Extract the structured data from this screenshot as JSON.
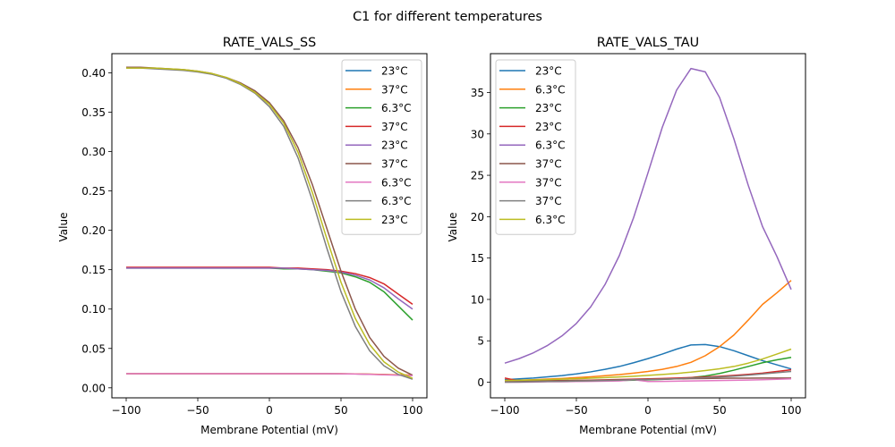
{
  "chart_data": {
    "suptitle": "C1 for different temperatures",
    "subplots": [
      {
        "type": "line",
        "title": "RATE_VALS_SS",
        "xlabel": "Membrane Potential (mV)",
        "ylabel": "Value",
        "xlim": [
          -110,
          110
        ],
        "ylim": [
          -0.0127,
          0.4243
        ],
        "xticks": [
          -100,
          -50,
          0,
          50,
          100
        ],
        "xtick_labels": [
          "−100",
          "−50",
          "0",
          "50",
          "100"
        ],
        "yticks": [
          0.0,
          0.05,
          0.1,
          0.15,
          0.2,
          0.25,
          0.3,
          0.35,
          0.4
        ],
        "ytick_labels": [
          "0.00",
          "0.05",
          "0.10",
          "0.15",
          "0.20",
          "0.25",
          "0.30",
          "0.35",
          "0.40"
        ],
        "grid": false,
        "legend_position": "top-right",
        "x": [
          -100,
          -90,
          -80,
          -70,
          -60,
          -50,
          -40,
          -30,
          -20,
          -10,
          0,
          10,
          20,
          30,
          40,
          50,
          60,
          70,
          80,
          90,
          100
        ],
        "series": [
          {
            "name": "23°C",
            "color": "#1f77b4",
            "values": [
              0.018,
              0.018,
              0.018,
              0.018,
              0.018,
              0.018,
              0.018,
              0.018,
              0.018,
              0.018,
              0.018,
              0.018,
              0.018,
              0.018,
              0.018,
              0.0178,
              0.0176,
              0.0172,
              0.0168,
              0.0163,
              0.0158
            ]
          },
          {
            "name": "37°C",
            "color": "#ff7f0e",
            "values": [
              0.018,
              0.018,
              0.018,
              0.018,
              0.018,
              0.018,
              0.018,
              0.018,
              0.018,
              0.018,
              0.018,
              0.018,
              0.018,
              0.018,
              0.018,
              0.0179,
              0.0177,
              0.0174,
              0.017,
              0.0166,
              0.0162
            ]
          },
          {
            "name": "6.3°C",
            "color": "#2ca02c",
            "values": [
              0.152,
              0.152,
              0.152,
              0.152,
              0.152,
              0.152,
              0.152,
              0.152,
              0.152,
              0.152,
              0.152,
              0.151,
              0.151,
              0.15,
              0.148,
              0.146,
              0.141,
              0.134,
              0.122,
              0.104,
              0.086
            ]
          },
          {
            "name": "37°C",
            "color": "#d62728",
            "values": [
              0.153,
              0.153,
              0.153,
              0.153,
              0.153,
              0.153,
              0.153,
              0.153,
              0.153,
              0.153,
              0.153,
              0.152,
              0.152,
              0.151,
              0.15,
              0.148,
              0.145,
              0.14,
              0.132,
              0.119,
              0.106
            ]
          },
          {
            "name": "23°C",
            "color": "#9467bd",
            "values": [
              0.152,
              0.152,
              0.152,
              0.152,
              0.152,
              0.152,
              0.152,
              0.152,
              0.152,
              0.152,
              0.152,
              0.152,
              0.151,
              0.15,
              0.149,
              0.147,
              0.143,
              0.137,
              0.127,
              0.113,
              0.1
            ]
          },
          {
            "name": "37°C",
            "color": "#8c564b",
            "values": [
              0.407,
              0.407,
              0.406,
              0.405,
              0.404,
              0.402,
              0.399,
              0.394,
              0.387,
              0.377,
              0.362,
              0.339,
              0.305,
              0.258,
              0.203,
              0.148,
              0.1,
              0.064,
              0.04,
              0.025,
              0.016
            ]
          },
          {
            "name": "6.3°C",
            "color": "#e377c2",
            "values": [
              0.018,
              0.018,
              0.018,
              0.018,
              0.018,
              0.018,
              0.018,
              0.018,
              0.018,
              0.018,
              0.018,
              0.018,
              0.018,
              0.018,
              0.018,
              0.0178,
              0.0175,
              0.0171,
              0.0166,
              0.0161,
              0.0155
            ]
          },
          {
            "name": "6.3°C",
            "color": "#7f7f7f",
            "values": [
              0.406,
              0.406,
              0.405,
              0.404,
              0.403,
              0.401,
              0.398,
              0.393,
              0.385,
              0.374,
              0.357,
              0.332,
              0.292,
              0.238,
              0.178,
              0.122,
              0.078,
              0.047,
              0.028,
              0.017,
              0.011
            ]
          },
          {
            "name": "23°C",
            "color": "#bcbd22",
            "values": [
              0.406,
              0.406,
              0.406,
              0.405,
              0.404,
              0.402,
              0.399,
              0.394,
              0.386,
              0.375,
              0.36,
              0.336,
              0.299,
              0.248,
              0.19,
              0.134,
              0.088,
              0.055,
              0.033,
              0.02,
              0.012
            ]
          }
        ]
      },
      {
        "type": "line",
        "title": "RATE_VALS_TAU",
        "xlabel": "Membrane Potential (mV)",
        "ylabel": "Value",
        "xlim": [
          -110,
          110
        ],
        "ylim": [
          -1.89,
          39.7
        ],
        "xticks": [
          -100,
          -50,
          0,
          50,
          100
        ],
        "xtick_labels": [
          "−100",
          "−50",
          "0",
          "50",
          "100"
        ],
        "yticks": [
          0,
          5,
          10,
          15,
          20,
          25,
          30,
          35
        ],
        "ytick_labels": [
          "0",
          "5",
          "10",
          "15",
          "20",
          "25",
          "30",
          "35"
        ],
        "grid": false,
        "legend_position": "top-left",
        "x": [
          -100,
          -90,
          -80,
          -70,
          -60,
          -50,
          -40,
          -30,
          -20,
          -10,
          0,
          10,
          20,
          30,
          40,
          50,
          60,
          70,
          80,
          90,
          100
        ],
        "series": [
          {
            "name": "23°C",
            "color": "#1f77b4",
            "values": [
              0.3,
              0.4,
              0.5,
              0.65,
              0.8,
              1.0,
              1.25,
              1.55,
              1.9,
              2.35,
              2.85,
              3.4,
              4.0,
              4.5,
              4.55,
              4.3,
              3.8,
              3.2,
              2.6,
              2.1,
              1.6
            ]
          },
          {
            "name": "6.3°C",
            "color": "#ff7f0e",
            "values": [
              0.2,
              0.25,
              0.3,
              0.38,
              0.45,
              0.55,
              0.65,
              0.78,
              0.92,
              1.1,
              1.3,
              1.55,
              1.9,
              2.4,
              3.2,
              4.3,
              5.7,
              7.5,
              9.4,
              10.8,
              12.3
            ]
          },
          {
            "name": "23°C",
            "color": "#2ca02c",
            "values": [
              0.05,
              0.06,
              0.07,
              0.08,
              0.1,
              0.12,
              0.14,
              0.17,
              0.2,
              0.24,
              0.28,
              0.34,
              0.42,
              0.55,
              0.75,
              1.05,
              1.45,
              1.9,
              2.35,
              2.7,
              3.0
            ]
          },
          {
            "name": "23°C",
            "color": "#d62728",
            "values": [
              0.5,
              0.15,
              0.16,
              0.18,
              0.2,
              0.22,
              0.25,
              0.28,
              0.32,
              0.36,
              0.4,
              0.45,
              0.5,
              0.56,
              0.63,
              0.72,
              0.82,
              0.95,
              1.1,
              1.3,
              1.5
            ]
          },
          {
            "name": "6.3°C",
            "color": "#9467bd",
            "values": [
              2.3,
              2.85,
              3.55,
              4.45,
              5.6,
              7.1,
              9.1,
              11.8,
              15.3,
              19.9,
              25.3,
              30.8,
              35.3,
              37.9,
              37.5,
              34.4,
              29.4,
              23.8,
              18.8,
              15.2,
              11.2
            ]
          },
          {
            "name": "37°C",
            "color": "#8c564b",
            "values": [
              0.1,
              0.12,
              0.14,
              0.16,
              0.18,
              0.2,
              0.22,
              0.25,
              0.28,
              0.31,
              0.34,
              0.37,
              0.4,
              0.43,
              0.45,
              0.47,
              0.48,
              0.49,
              0.5,
              0.5,
              0.5
            ]
          },
          {
            "name": "37°C",
            "color": "#e377c2",
            "values": [
              0.0,
              0.0,
              0.02,
              0.05,
              0.06,
              0.08,
              0.1,
              0.12,
              0.15,
              0.3,
              0.08,
              0.1,
              0.12,
              0.15,
              0.18,
              0.2,
              0.23,
              0.26,
              0.3,
              0.35,
              0.4
            ]
          },
          {
            "name": "37°C",
            "color": "#7f7f7f",
            "values": [
              0.0,
              0.02,
              0.05,
              0.08,
              0.1,
              0.13,
              0.16,
              0.2,
              0.24,
              0.28,
              0.32,
              0.37,
              0.42,
              0.48,
              0.55,
              0.63,
              0.73,
              0.85,
              1.0,
              1.15,
              1.3
            ]
          },
          {
            "name": "6.3°C",
            "color": "#bcbd22",
            "values": [
              0.2,
              0.23,
              0.27,
              0.31,
              0.36,
              0.42,
              0.48,
              0.55,
              0.63,
              0.72,
              0.82,
              0.93,
              1.06,
              1.21,
              1.4,
              1.62,
              1.9,
              2.3,
              2.8,
              3.4,
              4.0
            ]
          }
        ]
      }
    ]
  }
}
